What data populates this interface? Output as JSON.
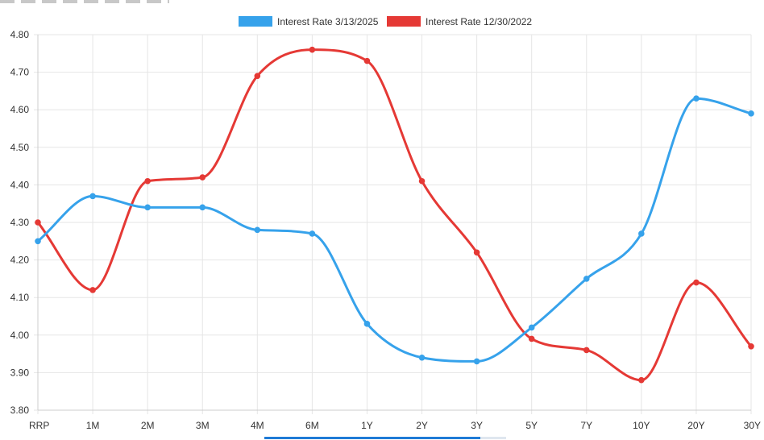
{
  "chart_data": {
    "type": "line",
    "categories": [
      "RRP",
      "1M",
      "2M",
      "3M",
      "4M",
      "6M",
      "1Y",
      "2Y",
      "3Y",
      "5Y",
      "7Y",
      "10Y",
      "20Y",
      "30Y"
    ],
    "series": [
      {
        "name": "Interest Rate 3/13/2025",
        "color": "#36a2eb",
        "values": [
          4.25,
          4.37,
          4.34,
          4.34,
          4.28,
          4.27,
          4.03,
          3.94,
          3.93,
          4.02,
          4.15,
          4.27,
          4.63,
          4.59
        ]
      },
      {
        "name": "Interest Rate 12/30/2022",
        "color": "#e53935",
        "values": [
          4.3,
          4.12,
          4.41,
          4.42,
          4.69,
          4.76,
          4.73,
          4.41,
          4.22,
          3.99,
          3.96,
          3.88,
          4.14,
          3.97
        ]
      }
    ],
    "ylim": [
      3.8,
      4.8
    ],
    "yticks": [
      "3.80",
      "3.90",
      "4.00",
      "4.10",
      "4.20",
      "4.30",
      "4.40",
      "4.50",
      "4.60",
      "4.70",
      "4.80"
    ],
    "grid": true,
    "legend_position": "top-center",
    "curve": "smooth"
  }
}
